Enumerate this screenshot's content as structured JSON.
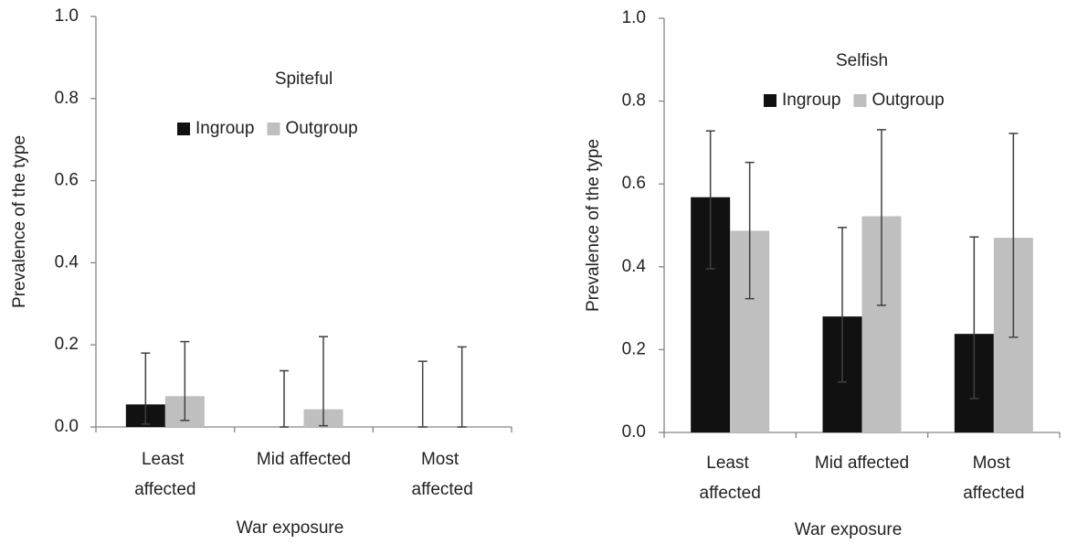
{
  "chart_data": [
    {
      "type": "bar",
      "title": "Spiteful",
      "xlabel": "War exposure",
      "ylabel": "Prevalence of the type",
      "categories": [
        "Least affected",
        "Mid affected",
        "Most affected"
      ],
      "series": [
        {
          "name": "Ingroup",
          "color": "#111111",
          "values": [
            0.055,
            0,
            0
          ],
          "ci_low": [
            0.007,
            0,
            0
          ],
          "ci_high": [
            0.18,
            0.137,
            0.16
          ]
        },
        {
          "name": "Outgroup",
          "color": "#bfbfbf",
          "values": [
            0.075,
            0.043,
            0
          ],
          "ci_low": [
            0.016,
            0.003,
            0
          ],
          "ci_high": [
            0.208,
            0.22,
            0.195
          ]
        }
      ],
      "ylim": [
        0,
        1
      ],
      "yticks": [
        {
          "value": 0,
          "label": "0.0"
        },
        0.2,
        0.4,
        0.6,
        0.8,
        {
          "value": 1,
          "label": "1.0"
        }
      ],
      "grid": false,
      "legend": "top"
    },
    {
      "type": "bar",
      "title": "Selfish",
      "xlabel": "War exposure",
      "ylabel": "Prevalence of the type",
      "categories": [
        "Least affected",
        "Mid affected",
        "Most affected"
      ],
      "series": [
        {
          "name": "Ingroup",
          "color": "#111111",
          "values": [
            0.568,
            0.28,
            0.238
          ],
          "ci_low": [
            0.395,
            0.122,
            0.082
          ],
          "ci_high": [
            0.728,
            0.495,
            0.472
          ]
        },
        {
          "name": "Outgroup",
          "color": "#bfbfbf",
          "values": [
            0.487,
            0.522,
            0.47
          ],
          "ci_low": [
            0.323,
            0.307,
            0.23
          ],
          "ci_high": [
            0.652,
            0.731,
            0.722
          ]
        }
      ],
      "ylim": [
        0,
        1
      ],
      "yticks": [
        {
          "value": 0,
          "label": "0.0"
        },
        0.2,
        0.4,
        0.6,
        0.8,
        {
          "value": 1,
          "label": "1.0"
        }
      ],
      "grid": false,
      "legend": "top"
    }
  ]
}
